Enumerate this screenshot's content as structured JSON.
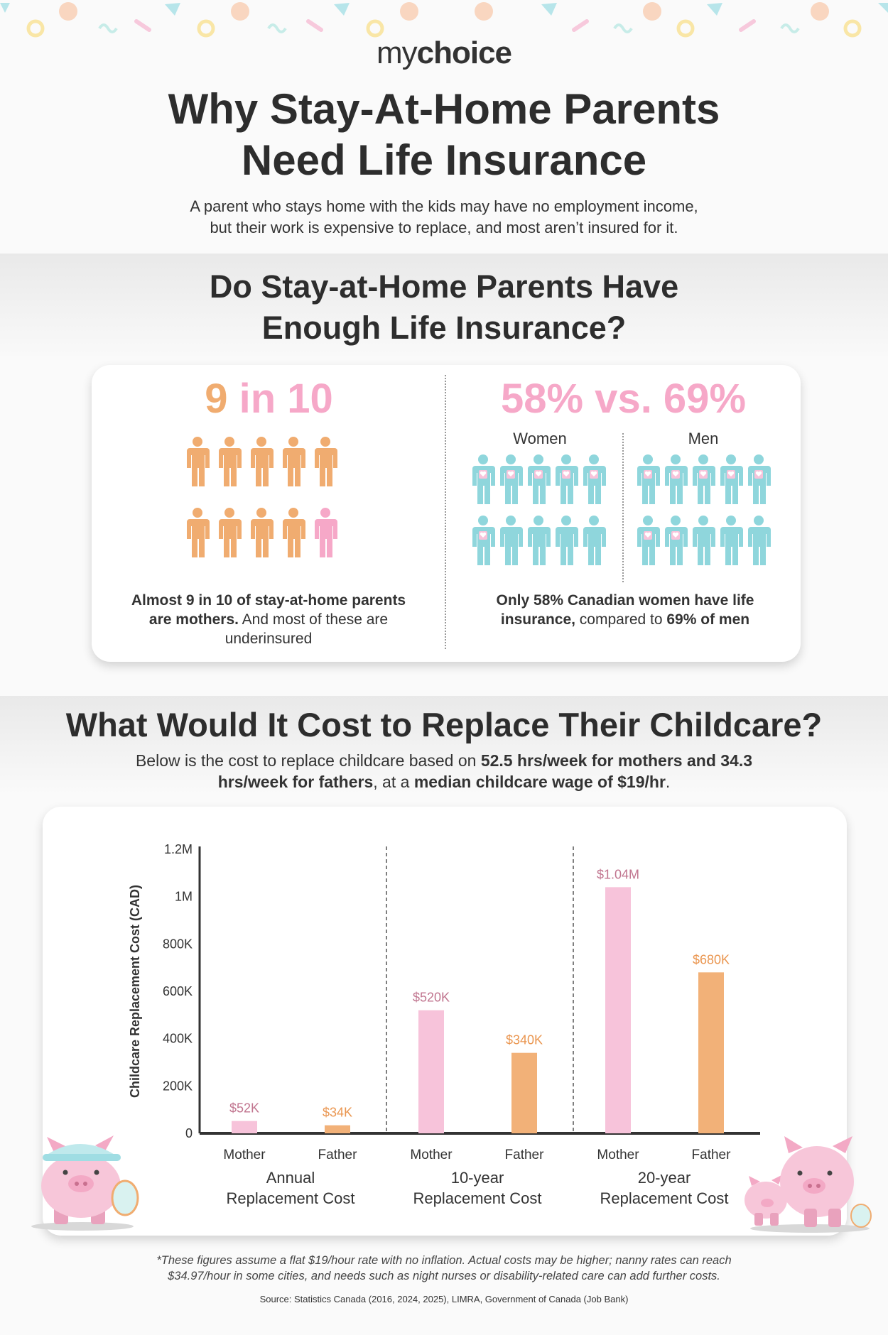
{
  "brand": {
    "my": "my",
    "choice": "choice"
  },
  "header": {
    "title_line1": "Why Stay-At-Home Parents",
    "title_line2": "Need Life Insurance",
    "intro_line1": "A parent who stays home with the kids may have no employment income,",
    "intro_line2": "but their work is expensive to replace, and most aren’t insured for it."
  },
  "section1": {
    "title_line1": "Do Stay-at-Home Parents Have",
    "title_line2": "Enough Life Insurance?",
    "left": {
      "stat_num1": "9",
      "stat_mid": " in ",
      "stat_num2": "10",
      "caption_bold": "Almost 9 in 10 of stay-at-home parents are mothers.",
      "caption_rest": " And most of these are underinsured",
      "highlighted_of": 9,
      "total": 10
    },
    "right": {
      "stat": "58% vs. 69%",
      "women_label": "Women",
      "men_label": "Men",
      "caption_bold": "Only 58% Canadian women have life insurance,",
      "caption_mid": " compared to ",
      "caption_bold2": "69% of men",
      "women_insured_pct": 58,
      "men_insured_pct": 69
    }
  },
  "section2": {
    "title": "What Would It Cost to Replace Their Childcare?",
    "sub_pre": "Below is the cost to replace childcare based on ",
    "sub_bold1": "52.5 hrs/week for mothers and 34.3 hrs/week for fathers",
    "sub_mid": ", at a ",
    "sub_bold2": "median childcare wage of $19/hr",
    "sub_end": "."
  },
  "chart_data": {
    "type": "bar",
    "ylabel": "Childcare Replacement Cost (CAD)",
    "ylim": [
      0,
      1200000
    ],
    "yticks": [
      0,
      200000,
      400000,
      600000,
      800000,
      1000000,
      1200000
    ],
    "ytick_labels": [
      "0",
      "200K",
      "400K",
      "600K",
      "800K",
      "1M",
      "1.2M"
    ],
    "groups": [
      {
        "label_line1": "Annual",
        "label_line2": "Replacement Cost",
        "bars": [
          {
            "category": "Mother",
            "value": 52000,
            "label": "$52K",
            "color": "#f7c3da",
            "label_color": "#c1758f"
          },
          {
            "category": "Father",
            "value": 34000,
            "label": "$34K",
            "color": "#f2b178",
            "label_color": "#ea9650"
          }
        ]
      },
      {
        "label_line1": "10-year",
        "label_line2": "Replacement Cost",
        "bars": [
          {
            "category": "Mother",
            "value": 520000,
            "label": "$520K",
            "color": "#f7c3da",
            "label_color": "#c1758f"
          },
          {
            "category": "Father",
            "value": 340000,
            "label": "$340K",
            "color": "#f2b178",
            "label_color": "#ea9650"
          }
        ]
      },
      {
        "label_line1": "20-year",
        "label_line2": "Replacement Cost",
        "bars": [
          {
            "category": "Mother",
            "value": 1040000,
            "label": "$1.04M",
            "color": "#f7c3da",
            "label_color": "#c1758f"
          },
          {
            "category": "Father",
            "value": 680000,
            "label": "$680K",
            "color": "#f2b178",
            "label_color": "#ea9650"
          }
        ]
      }
    ]
  },
  "footnote": {
    "line1": "*These figures assume a flat $19/hour rate with no inflation. Actual costs may be higher; nanny rates can reach",
    "line2": "$34.97/hour in some cities, and needs such as night nurses or disability-related care can add further costs.",
    "source": "Source: Statistics Canada (2016, 2024, 2025), LIMRA, Government of Canada (Job Bank)"
  },
  "colors": {
    "pink": "#f6a8c8",
    "orange": "#f0ac70",
    "teal": "#8fd6dc",
    "heading": "#2d2d2d"
  }
}
